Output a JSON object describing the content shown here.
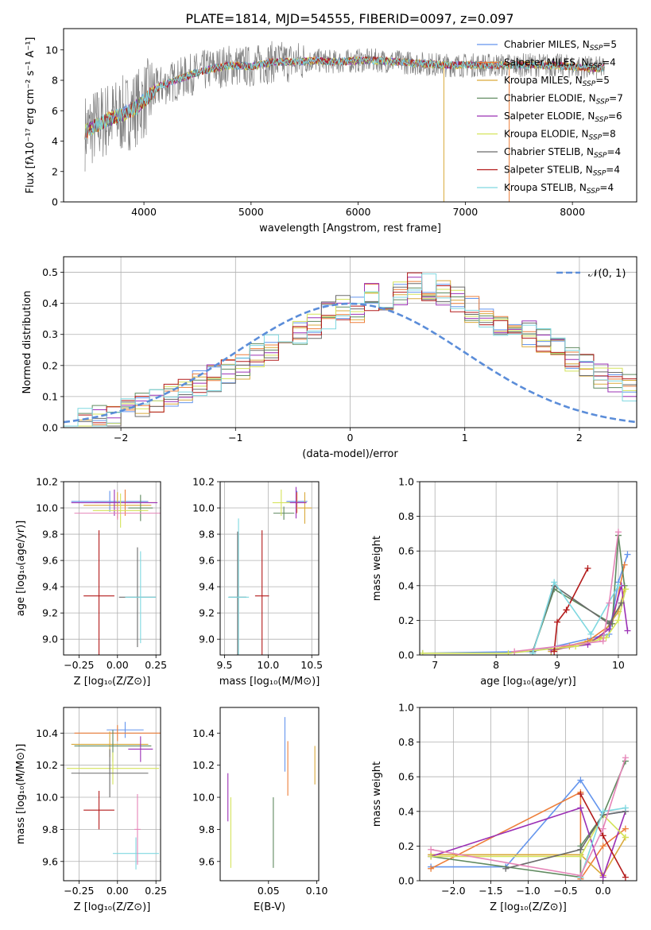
{
  "figure": {
    "title": "PLATE=1814, MJD=54555, FIBERID=0097, z=0.097"
  },
  "colors": [
    "#6495ed",
    "#ed7f3a",
    "#d9a93b",
    "#5f8a5f",
    "#9b30b5",
    "#d4e35a",
    "#6b6b6b",
    "#b31b1b",
    "#7fd8e0",
    "#e585b8",
    "#c8c83a",
    "#2e8b57"
  ],
  "chart_data": [
    {
      "id": "spectrum",
      "type": "line",
      "xlabel": "wavelength [Angstrom, rest frame]",
      "ylabel": "Flux [fλ10⁻¹⁷ erg cm⁻² s⁻¹ A⁻¹]",
      "xlim": [
        3250,
        8600
      ],
      "ylim": [
        0,
        11.4
      ],
      "xticks": [
        4000,
        5000,
        6000,
        7000,
        8000
      ],
      "yticks": [
        0,
        2,
        4,
        6,
        8,
        10
      ],
      "grid": false,
      "legend_position": "right",
      "legend": [
        "Chabrier MILES, N_SSP=5",
        "Salpeter MILES, N_SSP=4",
        "Kroupa MILES, N_SSP=5",
        "Chabrier ELODIE, N_SSP=7",
        "Salpeter ELODIE, N_SSP=6",
        "Kroupa ELODIE, N_SSP=8",
        "Chabrier STELIB, N_SSP=4",
        "Salpeter STELIB, N_SSP=4",
        "Kroupa STELIB, N_SSP=4"
      ],
      "continuum": {
        "x": [
          3450,
          3550,
          3650,
          3750,
          3850,
          3950,
          4050,
          4150,
          4300,
          4450,
          4600,
          4800,
          5000,
          5200,
          5400,
          5600,
          5800,
          6000,
          6200,
          6400,
          6600,
          6800,
          7000,
          7200,
          7400,
          7600,
          7800,
          8000,
          8200,
          8300
        ],
        "y": [
          4.6,
          5.0,
          5.4,
          5.6,
          5.9,
          6.3,
          7.0,
          7.6,
          8.0,
          8.4,
          8.7,
          9.0,
          8.9,
          9.2,
          9.2,
          9.3,
          9.2,
          9.3,
          9.3,
          9.2,
          9.1,
          9.0,
          9.0,
          9.0,
          9.0,
          9.0,
          9.0,
          8.9,
          8.8,
          8.8
        ]
      }
    },
    {
      "id": "residuals",
      "type": "histogram",
      "xlabel": "(data-model)/error",
      "ylabel": "Normed distribution",
      "xlim": [
        -2.5,
        2.5
      ],
      "ylim": [
        0,
        0.55
      ],
      "xticks": [
        -2,
        -1,
        0,
        1,
        2
      ],
      "yticks": [
        0.0,
        0.1,
        0.2,
        0.3,
        0.4,
        0.5
      ],
      "grid": true,
      "legend_position": "top-right",
      "legend": [
        "𝒩(0, 1)"
      ],
      "bin_width": 0.125,
      "bins_start": -2.5,
      "hist_base": [
        0.02,
        0.02,
        0.03,
        0.04,
        0.05,
        0.07,
        0.09,
        0.11,
        0.12,
        0.14,
        0.16,
        0.18,
        0.2,
        0.24,
        0.26,
        0.28,
        0.31,
        0.33,
        0.36,
        0.39,
        0.38,
        0.42,
        0.4,
        0.43,
        0.46,
        0.45,
        0.43,
        0.41,
        0.38,
        0.36,
        0.34,
        0.32,
        0.3,
        0.28,
        0.25,
        0.22,
        0.2,
        0.17,
        0.15,
        0.13,
        0.11,
        0.09,
        0.07,
        0.06,
        0.05,
        0.04,
        0.03,
        0.03,
        0.02,
        0.02
      ]
    },
    {
      "id": "age-z",
      "type": "scatter",
      "xlabel": "Z [log₁₀(Z/Z⊙)]",
      "ylabel": "age  [log₁₀(age/yr)]",
      "xlim": [
        -0.35,
        0.28
      ],
      "ylim": [
        8.88,
        10.2
      ],
      "xticks": [
        -0.25,
        0.0,
        0.25
      ],
      "yticks": [
        9.0,
        9.2,
        9.4,
        9.6,
        9.8,
        10.0,
        10.2
      ],
      "grid": true,
      "points": [
        {
          "x": -0.05,
          "y": 10.05,
          "xerr": 0.25,
          "yerr": 0.08
        },
        {
          "x": 0.05,
          "y": 10.04,
          "xerr": 0.2,
          "yerr": 0.1
        },
        {
          "x": 0.0,
          "y": 10.02,
          "xerr": 0.22,
          "yerr": 0.1
        },
        {
          "x": 0.15,
          "y": 10.0,
          "xerr": 0.08,
          "yerr": 0.1
        },
        {
          "x": -0.02,
          "y": 10.04,
          "xerr": 0.28,
          "yerr": 0.1
        },
        {
          "x": 0.02,
          "y": 9.98,
          "xerr": 0.18,
          "yerr": 0.13
        },
        {
          "x": 0.13,
          "y": 9.32,
          "xerr": 0.12,
          "yerr": 0.38
        },
        {
          "x": -0.12,
          "y": 9.33,
          "xerr": 0.1,
          "yerr": 0.5
        },
        {
          "x": 0.15,
          "y": 9.32,
          "xerr": 0.1,
          "yerr": 0.35
        },
        {
          "x": 0.0,
          "y": 9.96,
          "xerr": 0.28,
          "yerr": 0.05
        }
      ]
    },
    {
      "id": "age-mass",
      "type": "scatter",
      "xlabel": "mass [log₁₀(M/M⊙)]",
      "ylabel": "",
      "xlim": [
        9.45,
        10.58
      ],
      "ylim": [
        8.88,
        10.2
      ],
      "xticks": [
        9.5,
        10.0,
        10.5
      ],
      "yticks": [
        9.0,
        9.2,
        9.4,
        9.6,
        9.8,
        10.0,
        10.2
      ],
      "grid": true,
      "points": [
        {
          "x": 10.33,
          "y": 10.05,
          "xerr": 0.12,
          "yerr": 0.08
        },
        {
          "x": 10.33,
          "y": 10.04,
          "xerr": 0.1,
          "yerr": 0.08
        },
        {
          "x": 10.42,
          "y": 10.0,
          "xerr": 0.08,
          "yerr": 0.12
        },
        {
          "x": 10.18,
          "y": 9.96,
          "xerr": 0.12,
          "yerr": 0.05
        },
        {
          "x": 10.32,
          "y": 10.04,
          "xerr": 0.12,
          "yerr": 0.12
        },
        {
          "x": 10.15,
          "y": 10.04,
          "xerr": 0.1,
          "yerr": 0.1
        },
        {
          "x": 9.65,
          "y": 9.32,
          "xerr": 0.1,
          "yerr": 0.5
        },
        {
          "x": 9.93,
          "y": 9.33,
          "xerr": 0.08,
          "yerr": 0.5
        },
        {
          "x": 9.66,
          "y": 9.32,
          "xerr": 0.12,
          "yerr": 0.6
        }
      ]
    },
    {
      "id": "mass-weight-age",
      "type": "line",
      "xlabel": "age  [log₁₀(age/yr)]",
      "ylabel": "mass weight",
      "xlim": [
        6.75,
        10.3
      ],
      "ylim": [
        0,
        1.0
      ],
      "xticks": [
        7,
        8,
        9,
        10
      ],
      "yticks": [
        0.0,
        0.2,
        0.4,
        0.6,
        0.8,
        1.0
      ],
      "grid": true,
      "series": [
        {
          "x": [
            6.8,
            8.6,
            9.85,
            10.0,
            10.15
          ],
          "y": [
            0.01,
            0.02,
            0.12,
            0.42,
            0.58
          ]
        },
        {
          "x": [
            8.9,
            9.5,
            9.9,
            10.1
          ],
          "y": [
            0.03,
            0.08,
            0.18,
            0.52
          ]
        },
        {
          "x": [
            8.9,
            9.2,
            9.7,
            10.0,
            10.1
          ],
          "y": [
            0.02,
            0.05,
            0.1,
            0.25,
            0.38
          ]
        },
        {
          "x": [
            8.6,
            8.95,
            9.9,
            10.0,
            10.1
          ],
          "y": [
            0.02,
            0.38,
            0.18,
            0.69,
            0.4
          ]
        },
        {
          "x": [
            8.9,
            9.5,
            9.85,
            10.05,
            10.15
          ],
          "y": [
            0.03,
            0.06,
            0.15,
            0.4,
            0.14
          ]
        },
        {
          "x": [
            6.8,
            8.2,
            9.3,
            9.8,
            10.0,
            10.12
          ],
          "y": [
            0.01,
            0.01,
            0.05,
            0.1,
            0.2,
            0.38
          ]
        },
        {
          "x": [
            8.6,
            8.95,
            9.85,
            10.05
          ],
          "y": [
            0.02,
            0.4,
            0.18,
            0.3
          ]
        },
        {
          "x": [
            8.95,
            9.0,
            9.15,
            9.5
          ],
          "y": [
            0.02,
            0.19,
            0.26,
            0.5
          ]
        },
        {
          "x": [
            8.6,
            8.95,
            9.55,
            10.0
          ],
          "y": [
            0.01,
            0.42,
            0.12,
            0.4
          ]
        },
        {
          "x": [
            8.3,
            9.75,
            9.85,
            10.0
          ],
          "y": [
            0.02,
            0.08,
            0.3,
            0.71
          ]
        }
      ]
    },
    {
      "id": "mass-z",
      "type": "scatter",
      "xlabel": "Z [log₁₀(Z/Z⊙)]",
      "ylabel": "mass [log₁₀(M/M⊙)]",
      "xlim": [
        -0.35,
        0.28
      ],
      "ylim": [
        9.48,
        10.56
      ],
      "xticks": [
        -0.25,
        0.0,
        0.25
      ],
      "yticks": [
        9.6,
        9.8,
        10.0,
        10.2,
        10.4
      ],
      "grid": true,
      "points": [
        {
          "x": 0.05,
          "y": 10.42,
          "xerr": 0.12,
          "yerr": 0.05
        },
        {
          "x": 0.0,
          "y": 10.4,
          "xerr": 0.28,
          "yerr": 0.05
        },
        {
          "x": -0.05,
          "y": 10.33,
          "xerr": 0.25,
          "yerr": 0.08
        },
        {
          "x": -0.03,
          "y": 10.32,
          "xerr": 0.25,
          "yerr": 0.1
        },
        {
          "x": 0.15,
          "y": 10.3,
          "xerr": 0.08,
          "yerr": 0.08
        },
        {
          "x": -0.03,
          "y": 10.18,
          "xerr": 0.3,
          "yerr": 0.1
        },
        {
          "x": -0.05,
          "y": 10.15,
          "xerr": 0.25,
          "yerr": 0.15
        },
        {
          "x": -0.12,
          "y": 9.92,
          "xerr": 0.1,
          "yerr": 0.12
        },
        {
          "x": 0.12,
          "y": 9.65,
          "xerr": 0.15,
          "yerr": 0.1
        },
        {
          "x": 0.13,
          "y": 9.8,
          "xerr": 0.02,
          "yerr": 0.22
        }
      ]
    },
    {
      "id": "mass-ebv",
      "type": "scatter",
      "xlabel": "E(B-V)",
      "ylabel": "",
      "xlim": [
        0.0,
        0.102
      ],
      "ylim": [
        9.48,
        10.56
      ],
      "xticks": [
        0.05,
        0.1
      ],
      "yticks": [
        9.6,
        9.8,
        10.0,
        10.2,
        10.4
      ],
      "grid": false,
      "points": [
        {
          "x": 0.067,
          "y": 10.33,
          "xerr": 0.0,
          "yerr": 0.17
        },
        {
          "x": 0.07,
          "y": 10.18,
          "xerr": 0.0,
          "yerr": 0.17
        },
        {
          "x": 0.098,
          "y": 10.2,
          "xerr": 0.0,
          "yerr": 0.12
        },
        {
          "x": 0.055,
          "y": 9.78,
          "xerr": 0.0,
          "yerr": 0.22
        },
        {
          "x": 0.008,
          "y": 10.0,
          "xerr": 0.0,
          "yerr": 0.15
        },
        {
          "x": 0.011,
          "y": 9.78,
          "xerr": 0.0,
          "yerr": 0.22
        }
      ]
    },
    {
      "id": "mass-weight-z",
      "type": "line",
      "xlabel": "Z [log₁₀(Z/Z⊙)]",
      "ylabel": "mass weight",
      "xlim": [
        -2.45,
        0.45
      ],
      "ylim": [
        0,
        1.0
      ],
      "xticks": [
        -2.0,
        -1.5,
        -1.0,
        -0.5,
        0.0
      ],
      "yticks": [
        0.0,
        0.2,
        0.4,
        0.6,
        0.8,
        1.0
      ],
      "grid": true,
      "series": [
        {
          "x": [
            -2.3,
            -1.3,
            -0.3,
            0.0,
            0.3
          ],
          "y": [
            0.08,
            0.08,
            0.58,
            0.38,
            0.4
          ]
        },
        {
          "x": [
            -2.3,
            -0.3,
            -0.3,
            0.0,
            0.3
          ],
          "y": [
            0.07,
            0.51,
            0.01,
            0.2,
            0.3
          ]
        },
        {
          "x": [
            -2.3,
            -0.3,
            0.0,
            0.3
          ],
          "y": [
            0.15,
            0.15,
            0.03,
            0.25
          ]
        },
        {
          "x": [
            -2.3,
            -0.3,
            -0.3,
            0.0,
            0.3
          ],
          "y": [
            0.14,
            0.02,
            0.2,
            0.38,
            0.69
          ]
        },
        {
          "x": [
            -2.3,
            -0.3,
            0.0,
            0.3
          ],
          "y": [
            0.14,
            0.42,
            0.02,
            0.4
          ]
        },
        {
          "x": [
            -2.3,
            -0.3,
            0.0,
            0.3
          ],
          "y": [
            0.14,
            0.14,
            0.38,
            0.25
          ]
        },
        {
          "x": [
            -1.3,
            -0.3,
            0.0,
            0.3
          ],
          "y": [
            0.07,
            0.18,
            0.38,
            0.4
          ]
        },
        {
          "x": [
            -0.3,
            0.0,
            0.3
          ],
          "y": [
            0.5,
            0.26,
            0.02
          ]
        },
        {
          "x": [
            -0.3,
            0.0,
            0.3
          ],
          "y": [
            0.02,
            0.4,
            0.42
          ]
        },
        {
          "x": [
            -2.3,
            -0.3,
            0.0,
            0.3
          ],
          "y": [
            0.18,
            0.03,
            0.3,
            0.71
          ]
        }
      ]
    }
  ]
}
